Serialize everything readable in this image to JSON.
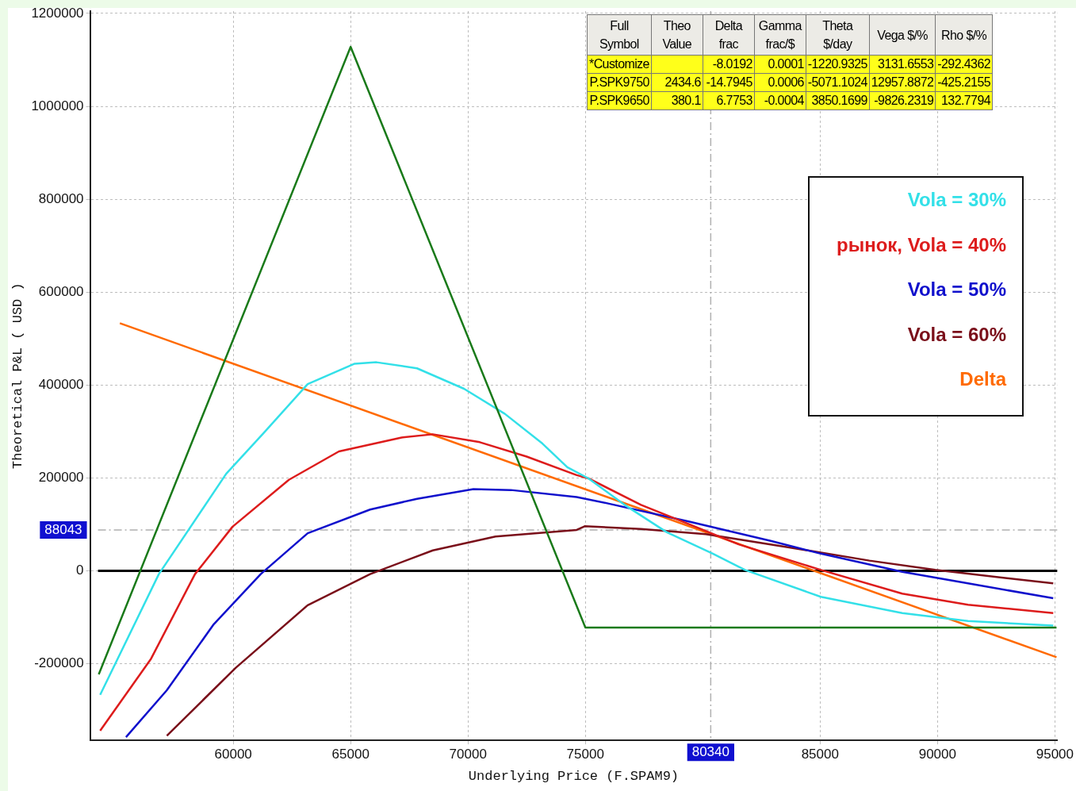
{
  "chart_data": {
    "type": "line",
    "xlabel": "Underlying Price (F.SPAM9)",
    "ylabel": "Theoretical P&L ( USD )",
    "xlim": [
      53900,
      95100
    ],
    "ylim": [
      -365000,
      1205000
    ],
    "xticks": [
      60000,
      65000,
      70000,
      75000,
      85000,
      90000,
      95000
    ],
    "yticks": [
      -200000,
      0,
      200000,
      400000,
      600000,
      800000,
      1000000,
      1200000
    ],
    "grid": true,
    "legend": "right",
    "marker": "none",
    "line_style": "solid",
    "ref_lines": [
      {
        "axis": "y",
        "value": 0,
        "color": "#000000",
        "line_style": "solid"
      },
      {
        "axis": "x",
        "value": 80340,
        "label": "80340",
        "color": "#b0b0b0",
        "line_style": "dashed"
      },
      {
        "axis": "y",
        "value": 88043,
        "label": "88043",
        "color": "#b0b0b0",
        "line_style": "dashed"
      }
    ],
    "annotations": [
      "Full Symbol",
      "Theo Value",
      "Delta frac",
      "Gamma frac/$",
      "Theta $/day",
      "Vega $/%",
      "Rho $/%",
      "*Customize",
      "-8.0192",
      "0.0001",
      "-1220.9325",
      "3131.6553",
      "-292.4362",
      "P.SPK9750",
      "2434.6",
      "-14.7945",
      "0.0006",
      "-5071.1024",
      "12957.8872",
      "-425.2155",
      "P.SPK9650",
      "380.1",
      "6.7753",
      "-0.0004",
      "3850.1699",
      "-9826.2319",
      "132.7794"
    ],
    "series": [
      {
        "color": "#1a7a1a",
        "x": [
          54270,
          65000,
          75000,
          95070
        ],
        "values": [
          -223000,
          1128000,
          -122000,
          -122000
        ]
      },
      {
        "name": "Vola = 30%",
        "color": "#33e0e8",
        "x": [
          54330,
          56830,
          59700,
          61300,
          63170,
          65170,
          66100,
          67830,
          69830,
          71570,
          73170,
          74230,
          75130,
          76670,
          78470,
          80430,
          81800,
          85030,
          88500,
          91300,
          94930
        ],
        "values": [
          -267000,
          -7000,
          209000,
          297000,
          402000,
          446000,
          449000,
          436000,
          392000,
          338000,
          274000,
          223000,
          199000,
          142000,
          83000,
          37000,
          2000,
          -56000,
          -91000,
          -108000,
          -118000
        ]
      },
      {
        "name": "рынок, Vola = 40%",
        "color": "#dd1c1c",
        "x": [
          54330,
          56500,
          58370,
          59970,
          62370,
          64500,
          67170,
          68500,
          70500,
          72500,
          74630,
          75130,
          77370,
          79430,
          81530,
          85030,
          88500,
          91300,
          94930
        ],
        "values": [
          -344000,
          -189000,
          -7000,
          95000,
          196000,
          257000,
          287000,
          294000,
          277000,
          246000,
          206000,
          199000,
          142000,
          100000,
          57000,
          2000,
          -49000,
          -73000,
          -91000
        ]
      },
      {
        "name": "Vola = 50%",
        "color": "#1010cc",
        "x": [
          55430,
          57170,
          59170,
          61170,
          63170,
          65830,
          67830,
          70230,
          71830,
          74630,
          75970,
          79430,
          82930,
          85030,
          88500,
          91300,
          94930
        ],
        "values": [
          -358000,
          -257000,
          -115000,
          -7000,
          81000,
          132000,
          155000,
          176000,
          174000,
          159000,
          145000,
          106000,
          64000,
          37000,
          -2000,
          -27000,
          -59000
        ]
      },
      {
        "name": "Vola = 60%",
        "color": "#7a0f1a",
        "x": [
          57170,
          60100,
          63170,
          65830,
          68500,
          71170,
          74630,
          74970,
          77370,
          80130,
          83630,
          87100,
          89900,
          94930
        ],
        "values": [
          -355000,
          -209000,
          -74000,
          -7000,
          44000,
          74000,
          88000,
          96000,
          90000,
          79000,
          51000,
          22000,
          2000,
          -27000
        ]
      },
      {
        "name": "Delta",
        "color": "#ff6a00",
        "x": [
          55170,
          95070
        ],
        "values": [
          533000,
          -186000
        ]
      }
    ]
  }
}
